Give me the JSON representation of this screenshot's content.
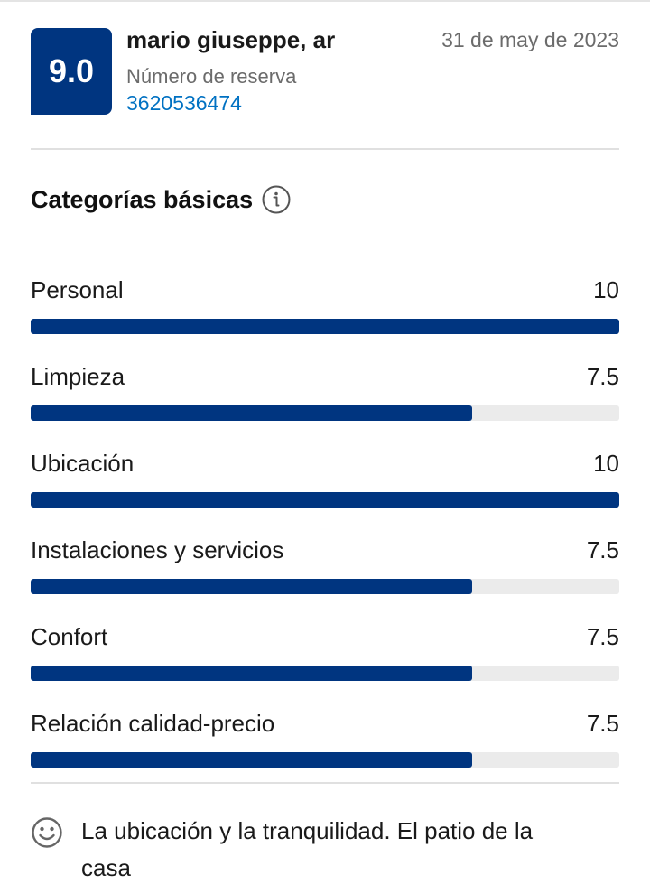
{
  "review": {
    "score": "9.0",
    "reviewer_name": "mario giuseppe, ar",
    "date": "31 de may de 2023",
    "booking_label": "Número de reserva",
    "booking_number": "3620536474"
  },
  "categories_section": {
    "title": "Categorías básicas",
    "info_icon": "info-icon",
    "items": [
      {
        "label": "Personal",
        "score": "10",
        "value": 10
      },
      {
        "label": "Limpieza",
        "score": "7.5",
        "value": 7.5
      },
      {
        "label": "Ubicación",
        "score": "10",
        "value": 10
      },
      {
        "label": "Instalaciones y servicios",
        "score": "7.5",
        "value": 7.5
      },
      {
        "label": "Confort",
        "score": "7.5",
        "value": 7.5
      },
      {
        "label": "Relación calidad-precio",
        "score": "7.5",
        "value": 7.5
      }
    ],
    "max_score": 10
  },
  "comment": {
    "icon": "smile-icon",
    "text": "La ubicación y la tranquilidad. El patio de la casa"
  },
  "colors": {
    "brand": "#003580",
    "link": "#0071c2",
    "track": "#ebebeb"
  }
}
